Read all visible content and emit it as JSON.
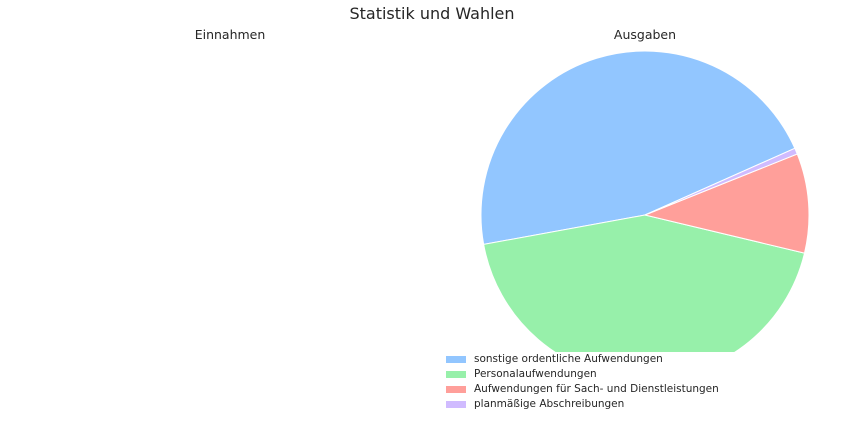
{
  "chart_data": {
    "type": "pie",
    "title": "Statistik und Wahlen",
    "charts": [
      {
        "title": "Einnahmen",
        "slices": []
      },
      {
        "title": "Ausgaben",
        "start_angle_deg": 24,
        "counterclockwise": true,
        "slices": [
          {
            "label": "sonstige ordentliche Aufwendungen",
            "value": 46.2,
            "color": "#92c6ff"
          },
          {
            "label": "Personalaufwendungen",
            "value": 43.4,
            "color": "#97f0aa"
          },
          {
            "label": "Aufwendungen für Sach- und Dienstleistungen",
            "value": 9.8,
            "color": "#ff9f9a"
          },
          {
            "label": "planmäßige Abschreibungen",
            "value": 0.6,
            "color": "#d0bbff"
          }
        ],
        "legend": "bottom-center"
      }
    ]
  }
}
